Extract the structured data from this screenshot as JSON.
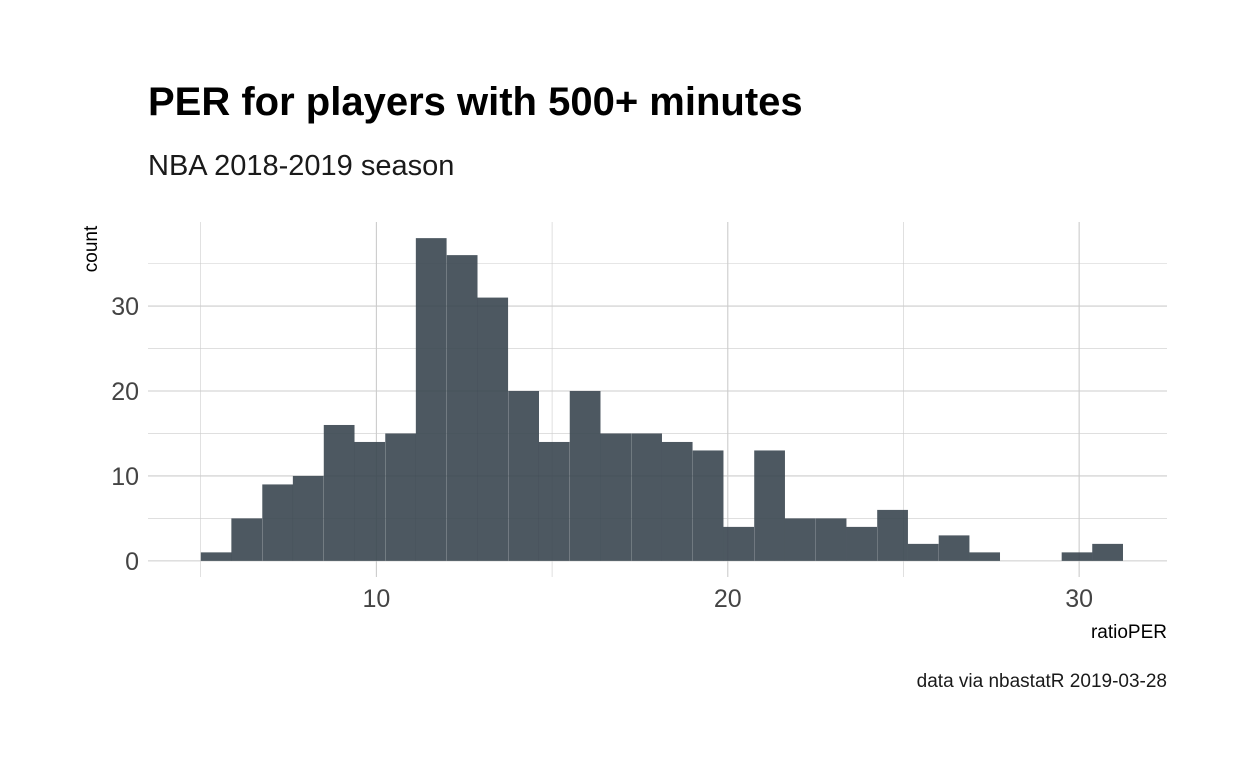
{
  "chart_data": {
    "type": "bar",
    "subtype": "histogram",
    "title": "PER for players with 500+ minutes",
    "subtitle": "NBA 2018-2019 season",
    "xlabel": "ratioPER",
    "ylabel": "count",
    "caption": "data via nbastatR 2019-03-28",
    "bin_width": 0.875,
    "bin_start": 5.0,
    "bins": [
      {
        "x": 5.44,
        "count": 1
      },
      {
        "x": 6.31,
        "count": 5
      },
      {
        "x": 7.19,
        "count": 9
      },
      {
        "x": 8.06,
        "count": 10
      },
      {
        "x": 8.94,
        "count": 16
      },
      {
        "x": 9.81,
        "count": 14
      },
      {
        "x": 10.69,
        "count": 15
      },
      {
        "x": 11.56,
        "count": 38
      },
      {
        "x": 12.44,
        "count": 36
      },
      {
        "x": 13.31,
        "count": 31
      },
      {
        "x": 14.19,
        "count": 20
      },
      {
        "x": 15.06,
        "count": 14
      },
      {
        "x": 15.94,
        "count": 20
      },
      {
        "x": 16.81,
        "count": 15
      },
      {
        "x": 17.69,
        "count": 15
      },
      {
        "x": 18.56,
        "count": 14
      },
      {
        "x": 19.44,
        "count": 13
      },
      {
        "x": 20.31,
        "count": 4
      },
      {
        "x": 21.19,
        "count": 13
      },
      {
        "x": 22.06,
        "count": 5
      },
      {
        "x": 22.94,
        "count": 5
      },
      {
        "x": 23.81,
        "count": 4
      },
      {
        "x": 24.69,
        "count": 6
      },
      {
        "x": 25.56,
        "count": 2
      },
      {
        "x": 26.44,
        "count": 3
      },
      {
        "x": 27.31,
        "count": 1
      },
      {
        "x": 28.19,
        "count": 0
      },
      {
        "x": 29.06,
        "count": 0
      },
      {
        "x": 29.94,
        "count": 1
      },
      {
        "x": 30.81,
        "count": 2
      }
    ],
    "xlim": [
      3.5,
      32.5
    ],
    "ylim": [
      -1.9,
      39.9
    ],
    "x_ticks": [
      10,
      20,
      30
    ],
    "y_ticks": [
      0,
      10,
      20,
      30
    ],
    "x_minor_ticks": [
      5,
      15,
      25
    ],
    "y_minor_ticks": [
      5,
      15,
      25,
      35
    ],
    "grid": true,
    "legend": "none",
    "bar_color": "#3a4650",
    "bar_opacity": 0.9,
    "grid_color": "#cccccc"
  }
}
